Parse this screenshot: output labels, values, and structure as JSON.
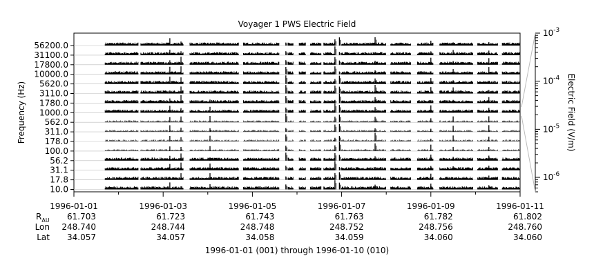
{
  "chart_data": {
    "type": "line",
    "title": "Voyager 1 PWS Electric Field",
    "ylabel": "Frequency (Hz)",
    "colorbar_label": "Electric Field (V/m)",
    "xlabel": "1996-01-01 (001) through 1996-01-10 (010)",
    "x_range": [
      "1996-01-01",
      "1996-01-11"
    ],
    "channels": [
      "56200.0",
      "31100.0",
      "17800.0",
      "10000.0",
      "5620.0",
      "3110.0",
      "1780.0",
      "1000.0",
      "562.0",
      "311.0",
      "178.0",
      "100.0",
      "56.2",
      "31.1",
      "17.8",
      "10.0"
    ],
    "x_ticks": [
      "1996-01-01",
      "1996-01-03",
      "1996-01-05",
      "1996-01-07",
      "1996-01-09",
      "1996-01-11"
    ],
    "colorbar": {
      "scale": "log",
      "range": [
        5e-07,
        0.001
      ],
      "ticks": [
        {
          "base": "10",
          "exp": "-3",
          "value": 0.001
        },
        {
          "base": "10",
          "exp": "-4",
          "value": 0.0001
        },
        {
          "base": "10",
          "exp": "-5",
          "value": 1e-05
        },
        {
          "base": "10",
          "exp": "-6",
          "value": 1e-06
        }
      ]
    },
    "ephemeris": {
      "labels": {
        "r_base": "R",
        "r_sub": "AU",
        "lon": "Lon",
        "lat": "Lat"
      },
      "r_au": [
        "61.703",
        "61.723",
        "61.743",
        "61.763",
        "61.782",
        "61.802"
      ],
      "lon": [
        "248.740",
        "248.744",
        "248.748",
        "248.752",
        "248.756",
        "248.760"
      ],
      "lat": [
        "34.057",
        "34.057",
        "34.058",
        "34.059",
        "34.060",
        "34.060"
      ]
    },
    "data_segments_days": [
      [
        0.7,
        1.45
      ],
      [
        1.5,
        2.45
      ],
      [
        2.6,
        3.7
      ],
      [
        3.8,
        4.6
      ],
      [
        4.8,
        4.92
      ],
      [
        5.05,
        5.2
      ],
      [
        5.3,
        5.55
      ],
      [
        5.6,
        5.85
      ],
      [
        6.0,
        7.0
      ],
      [
        7.1,
        7.55
      ],
      [
        7.7,
        8.05
      ],
      [
        8.2,
        8.95
      ],
      [
        9.05,
        9.5
      ],
      [
        9.6,
        10.0
      ]
    ],
    "events": [
      {
        "day": 2.15,
        "channels": [
          0,
          16
        ],
        "strength": 0.7
      },
      {
        "day": 2.4,
        "channels": [
          0,
          16
        ],
        "strength": 0.8
      },
      {
        "day": 3.05,
        "channels": [
          6,
          16
        ],
        "strength": 0.6
      },
      {
        "day": 4.75,
        "channels": [
          0,
          16
        ],
        "strength": 0.9
      },
      {
        "day": 5.85,
        "channels": [
          0,
          16
        ],
        "strength": 1.0
      },
      {
        "day": 5.95,
        "channels": [
          0,
          16
        ],
        "strength": 1.0
      },
      {
        "day": 6.75,
        "channels": [
          0,
          16
        ],
        "strength": 0.9
      },
      {
        "day": 8.0,
        "channels": [
          0,
          16
        ],
        "strength": 0.7
      },
      {
        "day": 8.5,
        "channels": [
          0,
          14
        ],
        "strength": 0.5
      },
      {
        "day": 9.3,
        "channels": [
          0,
          16
        ],
        "strength": 0.7
      }
    ]
  }
}
